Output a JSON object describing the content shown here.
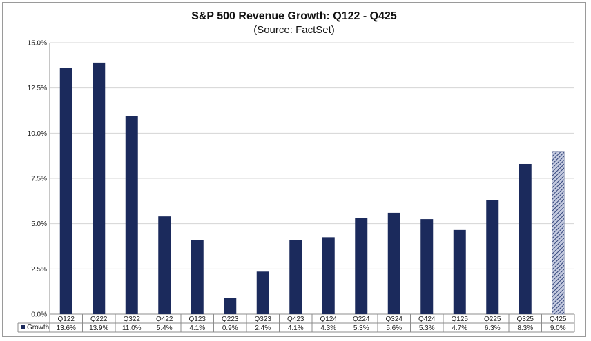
{
  "chart_data": {
    "type": "bar",
    "title": "S&P 500 Revenue Growth: Q122 - Q425",
    "subtitle": "(Source: FactSet)",
    "categories": [
      "Q122",
      "Q222",
      "Q322",
      "Q422",
      "Q123",
      "Q223",
      "Q323",
      "Q423",
      "Q124",
      "Q224",
      "Q324",
      "Q424",
      "Q125",
      "Q225",
      "Q325",
      "Q425"
    ],
    "series": [
      {
        "name": "Growth",
        "values": [
          13.6,
          13.9,
          11.0,
          5.4,
          4.1,
          0.9,
          2.4,
          4.1,
          4.3,
          5.3,
          5.6,
          5.3,
          4.7,
          6.3,
          8.3,
          9.0
        ],
        "value_labels": [
          "13.6%",
          "13.9%",
          "11.0%",
          "5.4%",
          "4.1%",
          "0.9%",
          "2.4%",
          "4.1%",
          "4.3%",
          "5.3%",
          "5.6%",
          "5.3%",
          "4.7%",
          "6.3%",
          "8.3%",
          "9.0%"
        ],
        "bar_values": [
          13.6,
          13.9,
          10.95,
          5.4,
          4.1,
          0.9,
          2.35,
          4.1,
          4.25,
          5.3,
          5.6,
          5.25,
          4.65,
          6.3,
          8.3,
          9.0
        ],
        "hatched_last": true
      }
    ],
    "ylim": [
      0,
      15
    ],
    "yticks": [
      "0.0%",
      "2.5%",
      "5.0%",
      "7.5%",
      "10.0%",
      "12.5%",
      "15.0%"
    ],
    "xlabel": "",
    "ylabel": "",
    "grid": true,
    "legend": "data-table-left",
    "colors": {
      "bar": "#1b2a5c",
      "hatch": "#7a88ad",
      "grid": "#d4d4d4",
      "axis": "#8c8c8c",
      "table": "#8c8c8c"
    }
  }
}
